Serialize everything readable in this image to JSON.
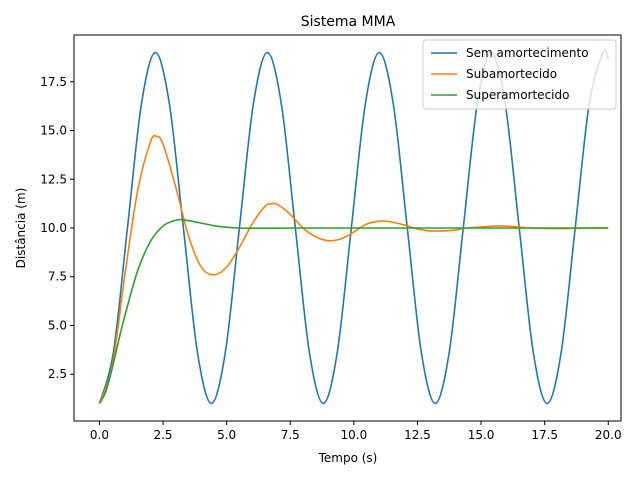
{
  "chart_data": {
    "type": "line",
    "title": "Sistema MMA",
    "xlabel": "Tempo (s)",
    "ylabel": "Distância (m)",
    "xlim": [
      -1,
      20.5
    ],
    "ylim": [
      0.1,
      19.9
    ],
    "xticks": [
      0.0,
      2.5,
      5.0,
      7.5,
      10.0,
      12.5,
      15.0,
      17.5,
      20.0
    ],
    "xtick_labels": [
      "0.0",
      "2.5",
      "5.0",
      "7.5",
      "10.0",
      "12.5",
      "15.0",
      "17.5",
      "20.0"
    ],
    "yticks": [
      2.5,
      5.0,
      7.5,
      10.0,
      12.5,
      15.0,
      17.5
    ],
    "ytick_labels": [
      "2.5",
      "5.0",
      "7.5",
      "10.0",
      "12.5",
      "15.0",
      "17.5"
    ],
    "grid": false,
    "legend_position": "top-right",
    "series": [
      {
        "name": "Sem amortecimento",
        "color": "#1f77b4",
        "x": [
          0,
          0.55,
          1.1,
          1.65,
          2.2,
          2.75,
          3.3,
          3.85,
          4.4,
          4.95,
          5.5,
          6.05,
          6.6,
          7.15,
          7.7,
          8.25,
          8.8,
          9.35,
          9.9,
          10.45,
          11.0,
          11.55,
          12.1,
          12.65,
          13.2,
          13.75,
          14.3,
          14.85,
          15.4,
          15.95,
          16.5,
          17.05,
          17.6,
          18.15,
          18.7,
          19.25,
          19.8,
          20.0
        ],
        "y": [
          1.0,
          3.64,
          10.0,
          16.36,
          19.0,
          16.36,
          10.0,
          3.64,
          1.0,
          3.64,
          10.0,
          16.36,
          19.0,
          16.36,
          10.0,
          3.64,
          1.0,
          3.64,
          10.0,
          16.36,
          19.0,
          16.36,
          10.0,
          3.64,
          1.0,
          3.64,
          10.0,
          16.36,
          19.0,
          16.36,
          10.0,
          3.64,
          1.0,
          3.64,
          10.0,
          16.36,
          19.0,
          18.66
        ]
      },
      {
        "name": "Subamortecido",
        "color": "#ff7f0e",
        "x": [
          0,
          0.5,
          1.0,
          1.5,
          2.0,
          2.25,
          2.5,
          3.0,
          3.5,
          4.0,
          4.5,
          5.0,
          5.5,
          6.0,
          6.5,
          6.75,
          7.0,
          7.5,
          8.0,
          8.5,
          9.0,
          9.5,
          10.0,
          10.5,
          11.0,
          11.25,
          11.5,
          12.0,
          12.5,
          13.0,
          13.5,
          14.0,
          14.5,
          15.0,
          15.5,
          16.0,
          16.5,
          17.0,
          17.5,
          18.0,
          18.5,
          19.0,
          19.5,
          20.0
        ],
        "y": [
          1.0,
          2.9,
          7.6,
          11.9,
          14.4,
          14.7,
          14.3,
          12.1,
          9.6,
          8.0,
          7.6,
          8.0,
          9.0,
          10.2,
          11.1,
          11.25,
          11.2,
          10.7,
          10.0,
          9.55,
          9.35,
          9.45,
          9.8,
          10.2,
          10.35,
          10.35,
          10.3,
          10.15,
          9.95,
          9.85,
          9.85,
          9.9,
          10.0,
          10.05,
          10.1,
          10.1,
          10.05,
          10.0,
          9.98,
          9.97,
          9.98,
          10.0,
          10.01,
          10.01
        ]
      },
      {
        "name": "Superamortecido",
        "color": "#2ca02c",
        "x": [
          0,
          0.25,
          0.5,
          0.75,
          1.0,
          1.5,
          2.0,
          2.5,
          3.0,
          3.25,
          3.5,
          4.0,
          4.5,
          5.0,
          5.5,
          6.0,
          7.0,
          8.0,
          10.0,
          12.0,
          14.0,
          16.0,
          18.0,
          20.0
        ],
        "y": [
          1.0,
          1.6,
          2.8,
          4.2,
          5.5,
          7.8,
          9.3,
          10.1,
          10.4,
          10.42,
          10.38,
          10.25,
          10.12,
          10.04,
          10.0,
          9.99,
          9.99,
          10.0,
          10.0,
          10.0,
          10.0,
          10.0,
          10.0,
          10.0
        ]
      }
    ]
  }
}
